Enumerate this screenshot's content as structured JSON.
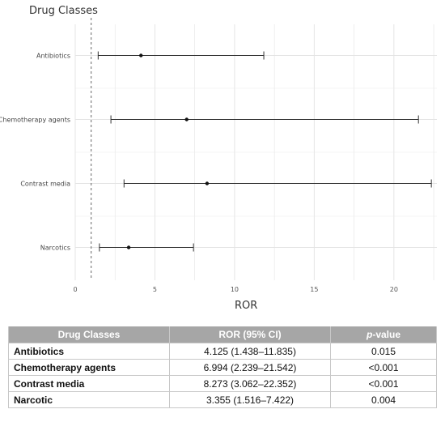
{
  "chart_data": {
    "type": "forest",
    "title": "Drug Classes",
    "xlabel": "ROR",
    "xlim": [
      0,
      22.7
    ],
    "x_ticks": [
      "0",
      "5",
      "10",
      "15",
      "20"
    ],
    "x_tick_values": [
      0,
      5,
      10,
      15,
      20
    ],
    "reference_line": 1,
    "grid": true,
    "rows": [
      {
        "label": "Antibiotics",
        "estimate": 4.125,
        "lower": 1.438,
        "upper": 11.835
      },
      {
        "label": "Chemotherapy agents",
        "estimate": 6.994,
        "lower": 2.239,
        "upper": 21.542
      },
      {
        "label": "Contrast media",
        "estimate": 8.273,
        "lower": 3.062,
        "upper": 22.352
      },
      {
        "label": "Narcotics",
        "estimate": 3.355,
        "lower": 1.516,
        "upper": 7.422
      }
    ]
  },
  "table": {
    "headers": [
      "Drug Classes",
      "ROR (95% CI)",
      "p",
      "-value"
    ],
    "rows": [
      [
        "Antibiotics",
        "4.125 (1.438–11.835)",
        "0.015"
      ],
      [
        "Chemotherapy agents",
        "6.994 (2.239–21.542)",
        "<0.001"
      ],
      [
        "Contrast media",
        "8.273 (3.062–22.352)",
        "<0.001"
      ],
      [
        "Narcotic",
        "3.355 (1.516–7.422)",
        "0.004"
      ]
    ]
  }
}
